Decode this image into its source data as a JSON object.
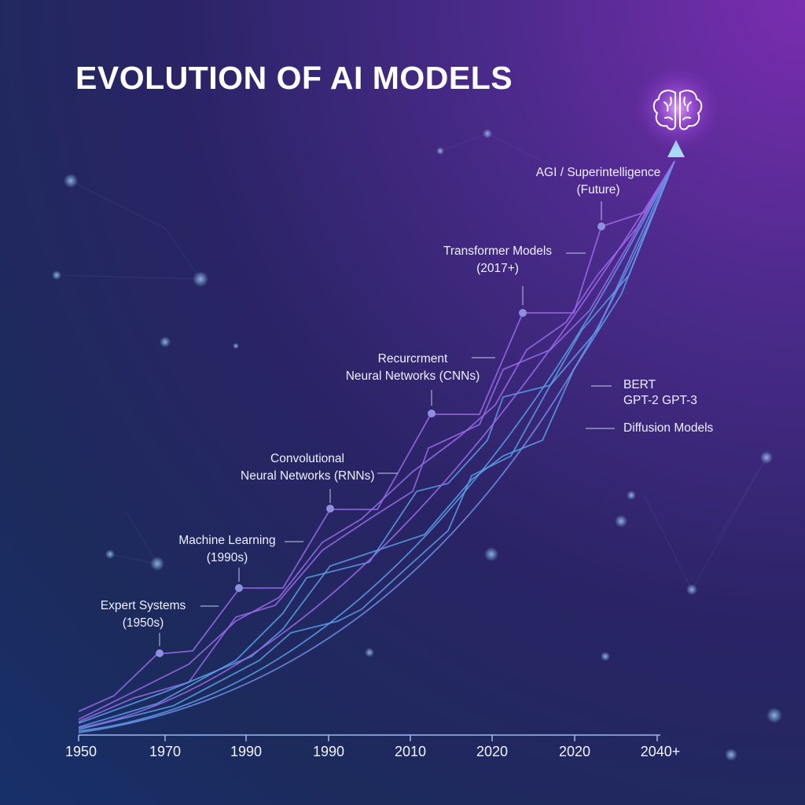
{
  "title": "EVOLUTION OF AI MODELS",
  "milestones": [
    {
      "line1": "Expert Systems",
      "line2": "(1950s)"
    },
    {
      "line1": "Machine Learning",
      "line2": "(1990s)"
    },
    {
      "line1": "Convolutional",
      "line2": "Neural Networks (RNNs)"
    },
    {
      "line1": "Recurcrment",
      "line2": "Neural Networks (CNNs)"
    },
    {
      "line1": "Transformer Models",
      "line2": "(2017+)"
    },
    {
      "line1": "AGI / Superintelligence",
      "line2": "(Future)"
    }
  ],
  "side_labels": {
    "bert": "BERT",
    "gpt": "GPT-2 GPT-3",
    "diffusion": "Diffusion Models"
  },
  "x_axis": {
    "ticks": [
      "1950",
      "1970",
      "1990",
      "1990",
      "2010",
      "2020",
      "2020",
      "2040+"
    ]
  },
  "icons": {
    "top": "brain-icon"
  },
  "colors": {
    "line_blue": "#5a9ee8",
    "line_purple": "#9a6ae8",
    "node": "#8f8fe0",
    "brain_glow": "#d090ff"
  }
}
